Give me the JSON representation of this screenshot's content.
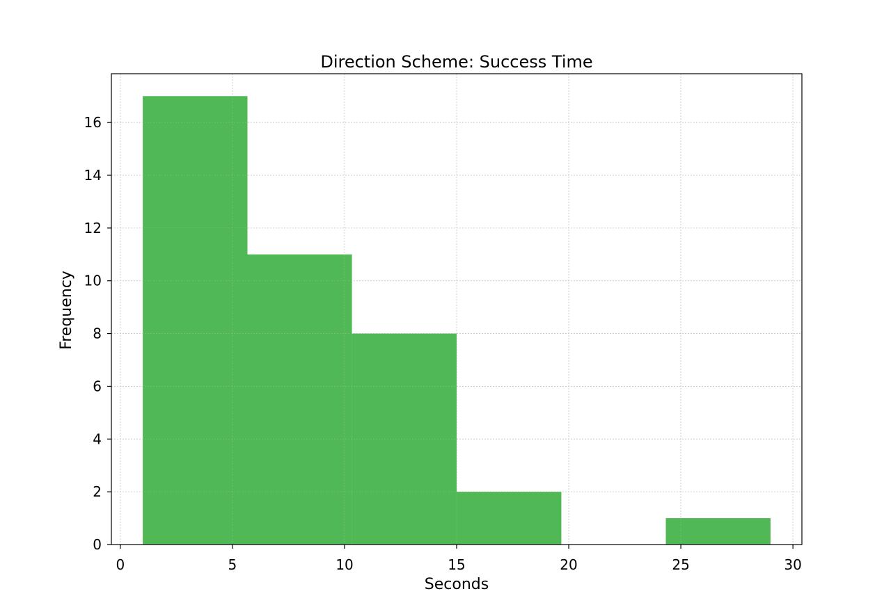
{
  "chart_data": {
    "type": "bar",
    "title": "Direction Scheme: Success Time",
    "xlabel": "Seconds",
    "ylabel": "Frequency",
    "bins": [
      {
        "start": 1.0,
        "end": 5.67,
        "value": 17
      },
      {
        "start": 5.67,
        "end": 10.33,
        "value": 11
      },
      {
        "start": 10.33,
        "end": 15.0,
        "value": 8
      },
      {
        "start": 15.0,
        "end": 19.67,
        "value": 2
      },
      {
        "start": 19.67,
        "end": 24.33,
        "value": 0
      },
      {
        "start": 24.33,
        "end": 29.0,
        "value": 1
      }
    ],
    "xlim": [
      -0.4,
      30.4
    ],
    "ylim": [
      0,
      17.85
    ],
    "xticks": [
      0,
      5,
      10,
      15,
      20,
      25,
      30
    ],
    "yticks": [
      0,
      2,
      4,
      6,
      8,
      10,
      12,
      14,
      16
    ],
    "grid": true,
    "bar_color": "#50b854"
  }
}
